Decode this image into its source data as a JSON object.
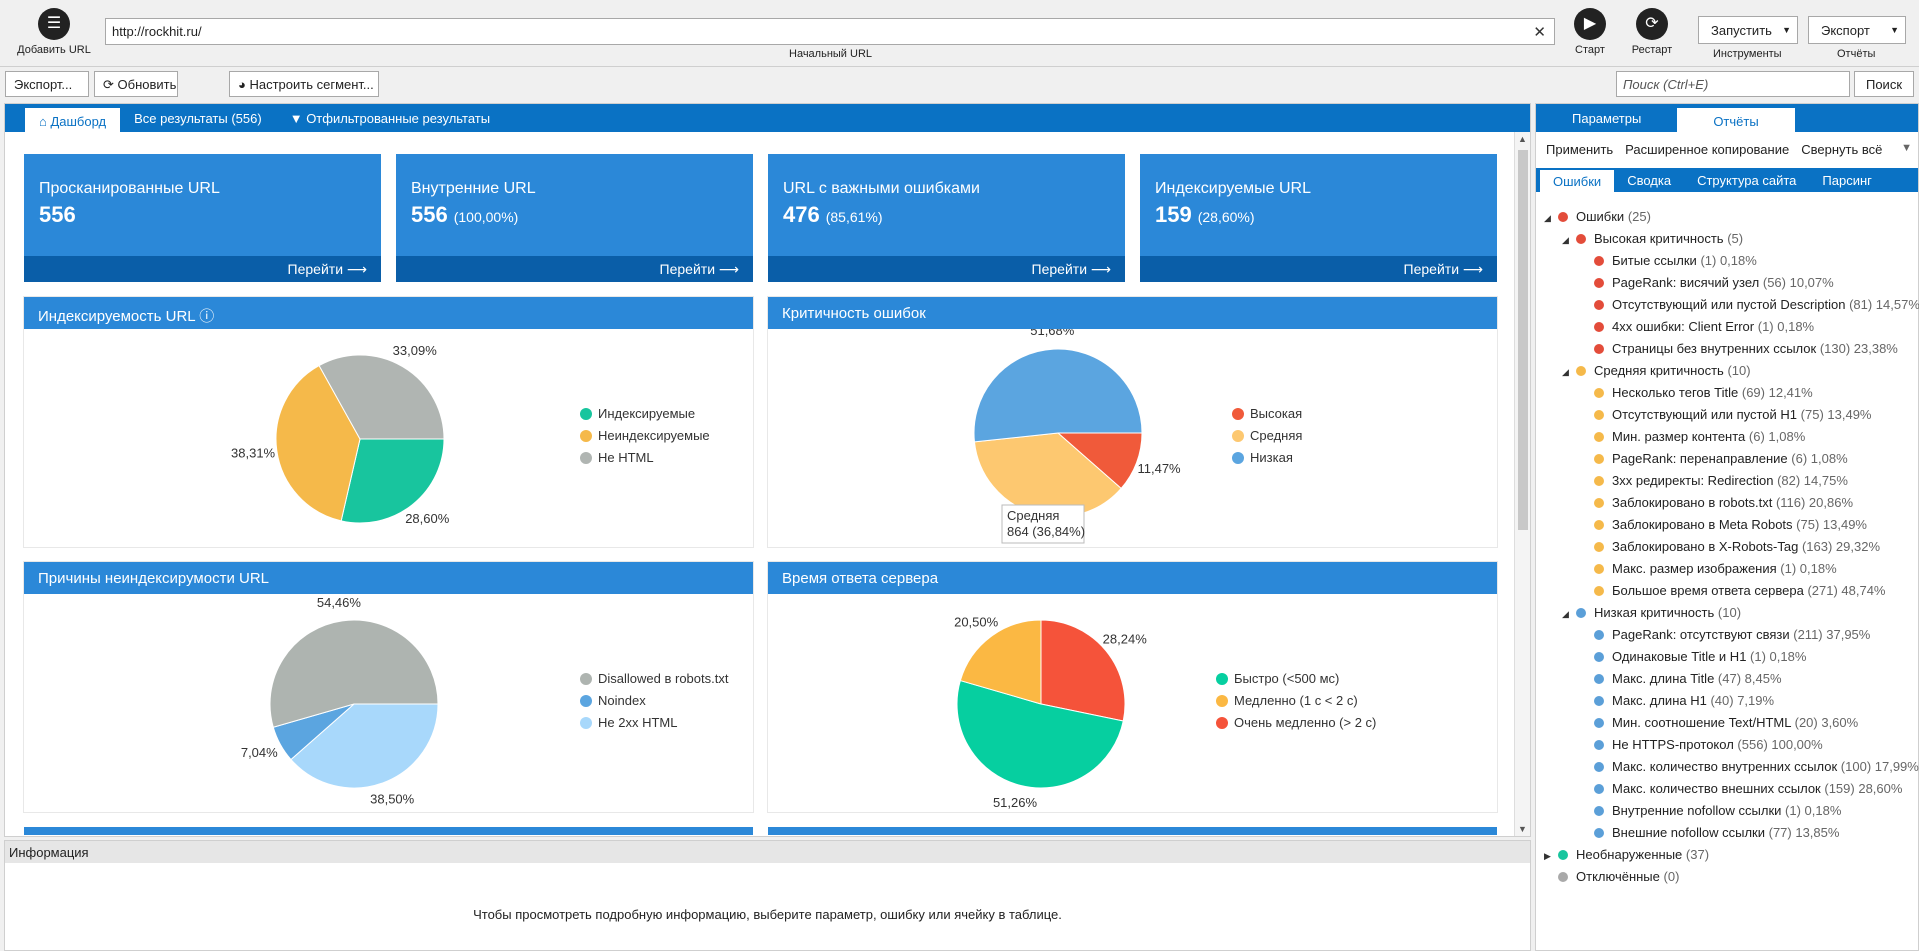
{
  "toolbar": {
    "add_url": "Добавить URL",
    "url": "http://rockhit.ru/",
    "url_label": "Начальный URL",
    "start": "Старт",
    "restart": "Рестарт",
    "run": "Запустить",
    "tools_label": "Инструменты",
    "export": "Экспорт",
    "reports_label": "Отчёты",
    "export2": "Экспорт...",
    "refresh": "Обновить",
    "segment": "Настроить сегмент...",
    "search_placeholder": "Поиск (Ctrl+E)",
    "search_btn": "Поиск"
  },
  "tabs": [
    "Дашборд",
    "Все результаты (556)",
    "Отфильтрованные результаты"
  ],
  "cards": [
    {
      "title": "Просканированные URL",
      "value": "556",
      "pct": "",
      "go": "Перейти"
    },
    {
      "title": "Внутренние URL",
      "value": "556",
      "pct": "(100,00%)",
      "go": "Перейти"
    },
    {
      "title": "URL с важными ошибками",
      "value": "476",
      "pct": "(85,61%)",
      "go": "Перейти"
    },
    {
      "title": "Индексируемые URL",
      "value": "159",
      "pct": "(28,60%)",
      "go": "Перейти"
    }
  ],
  "chart_data": [
    {
      "type": "pie",
      "title": "Индексируемость URL",
      "categories": [
        "Индексируемые",
        "Неиндексируемые",
        "Не HTML"
      ],
      "values": [
        28.6,
        38.31,
        33.09
      ],
      "labels": [
        "28,60%",
        "38,31%",
        "33,09%"
      ],
      "colors": [
        "#18c59e",
        "#f5b94a",
        "#b0b5b2"
      ]
    },
    {
      "type": "pie",
      "title": "Критичность ошибок",
      "categories": [
        "Высокая",
        "Средняя",
        "Низкая"
      ],
      "values": [
        11.47,
        36.84,
        51.68
      ],
      "labels": [
        "11,47%",
        "36,84%",
        "51,68%"
      ],
      "colors": [
        "#f05a3a",
        "#fdc870",
        "#5ba5e0"
      ],
      "tooltip": {
        "title": "Средняя",
        "value": "864 (36,84%)"
      }
    },
    {
      "type": "pie",
      "title": "Причины неиндексирумости URL",
      "categories": [
        "Disallowed в robots.txt",
        "Noindex",
        "Не 2xx HTML"
      ],
      "values": [
        54.46,
        7.04,
        38.5
      ],
      "labels": [
        "54,46%",
        "7,04%",
        "38,50%"
      ],
      "colors": [
        "#aeb4b0",
        "#5ba5e0",
        "#a8d8fb"
      ]
    },
    {
      "type": "pie",
      "title": "Время ответа сервера",
      "categories": [
        "Быстро (<500 мс)",
        "Медленно (1 с < 2 с)",
        "Очень медленно (> 2 с)"
      ],
      "values": [
        51.26,
        20.5,
        28.24
      ],
      "labels": [
        "51,26%",
        "20,50%",
        "28,24%"
      ],
      "colors": [
        "#06cfa0",
        "#fbb843",
        "#f5533a"
      ]
    }
  ],
  "info": {
    "title": "Информация",
    "message": "Чтобы просмотреть подробную информацию, выберите параметр, ошибку или ячейку в таблице."
  },
  "right": {
    "tabs": [
      "Параметры",
      "Отчёты"
    ],
    "actions": [
      "Применить",
      "Расширенное копирование",
      "Свернуть всё"
    ],
    "subtabs": [
      "Ошибки",
      "Сводка",
      "Структура сайта",
      "Парсинг"
    ],
    "tree": [
      {
        "level": 0,
        "tri": "◢",
        "color": "red",
        "label": "Ошибки",
        "count": "(25)"
      },
      {
        "level": 1,
        "tri": "◢",
        "color": "red",
        "label": "Высокая критичность",
        "count": "(5)"
      },
      {
        "level": 2,
        "color": "red",
        "label": "Битые ссылки",
        "count": "(1) 0,18%"
      },
      {
        "level": 2,
        "color": "red",
        "label": "PageRank: висячий узел",
        "count": "(56) 10,07%"
      },
      {
        "level": 2,
        "color": "red",
        "label": "Отсутствующий или пустой Description",
        "count": "(81) 14,57%"
      },
      {
        "level": 2,
        "color": "red",
        "label": "4xx ошибки: Client Error",
        "count": "(1) 0,18%"
      },
      {
        "level": 2,
        "color": "red",
        "label": "Страницы без внутренних ссылок",
        "count": "(130) 23,38%"
      },
      {
        "level": 1,
        "tri": "◢",
        "color": "yel",
        "label": "Средняя критичность",
        "count": "(10)"
      },
      {
        "level": 2,
        "color": "yel",
        "label": "Несколько тегов Title",
        "count": "(69) 12,41%"
      },
      {
        "level": 2,
        "color": "yel",
        "label": "Отсутствующий или пустой H1",
        "count": "(75) 13,49%"
      },
      {
        "level": 2,
        "color": "yel",
        "label": "Мин. размер контента",
        "count": "(6) 1,08%"
      },
      {
        "level": 2,
        "color": "yel",
        "label": "PageRank: перенаправление",
        "count": "(6) 1,08%"
      },
      {
        "level": 2,
        "color": "yel",
        "label": "3xx редиректы: Redirection",
        "count": "(82) 14,75%"
      },
      {
        "level": 2,
        "color": "yel",
        "label": "Заблокировано в robots.txt",
        "count": "(116) 20,86%"
      },
      {
        "level": 2,
        "color": "yel",
        "label": "Заблокировано в Meta Robots",
        "count": "(75) 13,49%"
      },
      {
        "level": 2,
        "color": "yel",
        "label": "Заблокировано в X-Robots-Tag",
        "count": "(163) 29,32%"
      },
      {
        "level": 2,
        "color": "yel",
        "label": "Макс. размер изображения",
        "count": "(1) 0,18%"
      },
      {
        "level": 2,
        "color": "yel",
        "label": "Большое время ответа сервера",
        "count": "(271) 48,74%"
      },
      {
        "level": 1,
        "tri": "◢",
        "color": "blu",
        "label": "Низкая критичность",
        "count": "(10)"
      },
      {
        "level": 2,
        "color": "blu",
        "label": "PageRank: отсутствуют связи",
        "count": "(211) 37,95%"
      },
      {
        "level": 2,
        "color": "blu",
        "label": "Одинаковые Title и H1",
        "count": "(1) 0,18%"
      },
      {
        "level": 2,
        "color": "blu",
        "label": "Макс. длина Title",
        "count": "(47) 8,45%"
      },
      {
        "level": 2,
        "color": "blu",
        "label": "Макс. длина H1",
        "count": "(40) 7,19%"
      },
      {
        "level": 2,
        "color": "blu",
        "label": "Мин. соотношение Text/HTML",
        "count": "(20) 3,60%"
      },
      {
        "level": 2,
        "color": "blu",
        "label": "Не HTTPS-протокол",
        "count": "(556) 100,00%"
      },
      {
        "level": 2,
        "color": "blu",
        "label": "Макс. количество внутренних ссылок",
        "count": "(100) 17,99%"
      },
      {
        "level": 2,
        "color": "blu",
        "label": "Макс. количество внешних ссылок",
        "count": "(159) 28,60%"
      },
      {
        "level": 2,
        "color": "blu",
        "label": "Внутренние nofollow ссылки",
        "count": "(1) 0,18%"
      },
      {
        "level": 2,
        "color": "blu",
        "label": "Внешние nofollow ссылки",
        "count": "(77) 13,85%"
      },
      {
        "level": 0,
        "tri": "▶",
        "color": "grn",
        "label": "Необнаруженные",
        "count": "(37)"
      },
      {
        "level": 0,
        "tri": "",
        "color": "gry",
        "label": "Отключённые",
        "count": "(0)"
      }
    ]
  },
  "icons": {
    "add": "list-icon",
    "start": "play-icon",
    "restart": "restart-icon",
    "refresh": "refresh-icon",
    "segment": "pie-icon",
    "home": "home-icon",
    "filter": "filter-icon",
    "info": "info-icon"
  }
}
